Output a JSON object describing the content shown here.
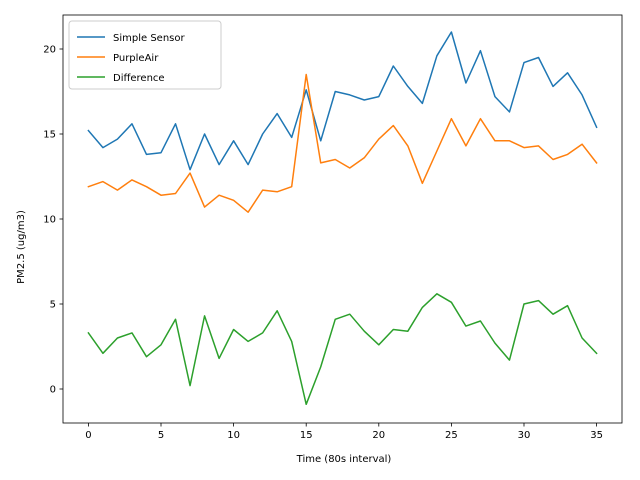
{
  "chart_data": {
    "type": "line",
    "title": "",
    "xlabel": "Time (80s interval)",
    "ylabel": "PM2.5 (ug/m3)",
    "xlim": [
      -1.75,
      36.75
    ],
    "ylim": [
      -2.0,
      22.0
    ],
    "xticks": [
      0,
      5,
      10,
      15,
      20,
      25,
      30,
      35
    ],
    "yticks": [
      0,
      5,
      10,
      15,
      20
    ],
    "grid": false,
    "legend": "upper left",
    "x": [
      0,
      1,
      2,
      3,
      4,
      5,
      6,
      7,
      8,
      9,
      10,
      11,
      12,
      13,
      14,
      15,
      16,
      17,
      18,
      19,
      20,
      21,
      22,
      23,
      24,
      25,
      26,
      27,
      28,
      29,
      30,
      31,
      32,
      33,
      34,
      35
    ],
    "series": [
      {
        "name": "Simple Sensor",
        "color": "#1f77b4",
        "values": [
          15.2,
          14.2,
          14.7,
          15.6,
          13.8,
          13.9,
          15.6,
          12.9,
          15.0,
          13.2,
          14.6,
          13.2,
          15.0,
          16.2,
          14.8,
          17.6,
          14.6,
          17.5,
          17.3,
          17.0,
          17.2,
          19.0,
          17.8,
          16.8,
          19.6,
          21.0,
          18.0,
          19.9,
          17.2,
          16.3,
          19.2,
          19.5,
          17.8,
          18.6,
          17.3,
          15.4
        ]
      },
      {
        "name": "PurpleAir",
        "color": "#ff7f0e",
        "values": [
          11.9,
          12.2,
          11.7,
          12.3,
          11.9,
          11.4,
          11.5,
          12.7,
          10.7,
          11.4,
          11.1,
          10.4,
          11.7,
          11.6,
          11.9,
          18.5,
          13.3,
          13.5,
          13.0,
          13.6,
          14.7,
          15.5,
          14.3,
          12.1,
          14.0,
          15.9,
          14.3,
          15.9,
          14.6,
          14.6,
          14.2,
          14.3,
          13.5,
          13.8,
          14.4,
          13.3
        ]
      },
      {
        "name": "Difference",
        "color": "#2ca02c",
        "values": [
          3.3,
          2.1,
          3.0,
          3.3,
          1.9,
          2.6,
          4.1,
          0.2,
          4.3,
          1.8,
          3.5,
          2.8,
          3.3,
          4.6,
          2.8,
          -0.9,
          1.3,
          4.1,
          4.4,
          3.4,
          2.6,
          3.5,
          3.4,
          4.8,
          5.6,
          5.1,
          3.7,
          4.0,
          2.7,
          1.7,
          5.0,
          5.2,
          4.4,
          4.9,
          3.0,
          2.1
        ]
      }
    ]
  }
}
